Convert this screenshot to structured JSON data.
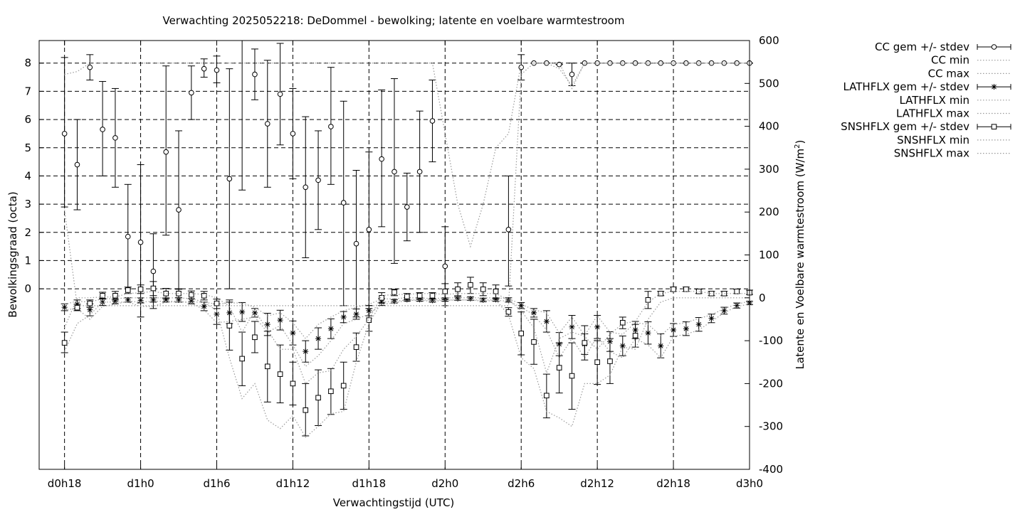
{
  "chart_data": {
    "type": "line",
    "title": "Verwachting 2025052218: DeDommel - bewolking; latente en voelbare warmtestroom",
    "xlabel": "Verwachtingstijd (UTC)",
    "ylabel": "Bewolkingsgraad (octa)",
    "y2label_main": "Latente en Voelbare warmtestroom (W/m",
    "y2label_sup": "2",
    "y2label_tail": ")",
    "x_unit": "hours since d0h0",
    "xlim": [
      16,
      72
    ],
    "ylim": [
      -6.4,
      8.8
    ],
    "y2lim": [
      -400,
      600
    ],
    "x_ticks": [
      {
        "x": 18,
        "label": "d0h18"
      },
      {
        "x": 24,
        "label": "d1h0"
      },
      {
        "x": 30,
        "label": "d1h6"
      },
      {
        "x": 36,
        "label": "d1h12"
      },
      {
        "x": 42,
        "label": "d1h18"
      },
      {
        "x": 48,
        "label": "d2h0"
      },
      {
        "x": 54,
        "label": "d2h6"
      },
      {
        "x": 60,
        "label": "d2h12"
      },
      {
        "x": 66,
        "label": "d2h18"
      },
      {
        "x": 72,
        "label": "d3h0"
      }
    ],
    "y_ticks": [
      0,
      1,
      2,
      3,
      4,
      5,
      6,
      7,
      8
    ],
    "y2_ticks": [
      -400,
      -300,
      -200,
      -100,
      0,
      100,
      200,
      300,
      400,
      500,
      600
    ],
    "grid": true,
    "legend_position": "outside-right",
    "x": [
      18,
      19,
      20,
      21,
      22,
      23,
      24,
      25,
      26,
      27,
      28,
      29,
      30,
      31,
      32,
      33,
      34,
      35,
      36,
      37,
      38,
      39,
      40,
      41,
      42,
      43,
      44,
      45,
      46,
      47,
      48,
      49,
      50,
      51,
      52,
      53,
      54,
      55,
      56,
      57,
      58,
      59,
      60,
      61,
      62,
      63,
      64,
      65,
      66,
      67,
      68,
      69,
      70,
      71,
      72
    ],
    "series": [
      {
        "name": "CC gem +/- stdev",
        "axis": "y1",
        "kind": "errorbars",
        "marker": "circle",
        "mean": [
          5.5,
          4.4,
          7.85,
          5.65,
          5.35,
          1.85,
          1.65,
          0.62,
          4.85,
          2.8,
          6.95,
          7.8,
          7.75,
          3.9,
          null,
          7.6,
          5.85,
          6.9,
          5.5,
          3.6,
          3.85,
          5.75,
          3.05,
          1.6,
          2.1,
          4.6,
          4.15,
          2.9,
          4.15,
          5.95,
          0.8,
          null,
          null,
          null,
          null,
          2.1,
          7.85,
          8.0,
          8.0,
          7.95,
          7.6,
          8.0,
          8.0,
          8.0,
          8.0,
          8.0,
          8.0,
          8.0,
          8.0,
          8.0,
          8.0,
          8.0,
          8.0,
          8.0,
          8.0
        ],
        "lo": [
          2.9,
          2.8,
          7.4,
          4.0,
          3.6,
          0.0,
          -1.0,
          -0.7,
          1.9,
          0.0,
          6.0,
          7.5,
          7.3,
          0.0,
          3.5,
          6.7,
          3.6,
          5.1,
          3.9,
          1.1,
          2.1,
          3.7,
          -0.6,
          -1.0,
          -0.6,
          2.2,
          0.9,
          1.7,
          2.0,
          4.5,
          -0.6,
          null,
          null,
          null,
          null,
          0.1,
          7.4,
          8.0,
          8.0,
          7.95,
          7.2,
          8.0,
          8.0,
          8.0,
          8.0,
          8.0,
          8.0,
          8.0,
          8.0,
          8.0,
          8.0,
          8.0,
          8.0,
          8.0,
          8.0
        ],
        "hi": [
          8.2,
          6.0,
          8.3,
          7.35,
          7.1,
          3.7,
          4.4,
          1.95,
          7.9,
          5.6,
          7.9,
          8.15,
          8.25,
          7.8,
          8.8,
          8.5,
          8.1,
          8.7,
          7.1,
          6.1,
          5.6,
          7.85,
          6.65,
          4.2,
          4.85,
          7.05,
          7.45,
          4.1,
          6.3,
          7.4,
          2.2,
          null,
          null,
          null,
          null,
          4.0,
          8.3,
          8.0,
          8.0,
          7.95,
          8.0,
          8.0,
          8.0,
          8.0,
          8.0,
          8.0,
          8.0,
          8.0,
          8.0,
          8.0,
          8.0,
          8.0,
          8.0,
          8.0,
          8.0
        ]
      },
      {
        "name": "CC min",
        "axis": "y1",
        "kind": "dotted",
        "values": [
          2.8,
          -0.6,
          -0.6,
          -0.6,
          -0.6,
          -0.6,
          -0.6,
          -0.6,
          -0.6,
          -0.6,
          -0.6,
          -0.6,
          -0.6,
          -0.6,
          -0.6,
          -0.6,
          -0.6,
          -0.6,
          -0.6,
          -0.6,
          -0.6,
          -0.6,
          -0.6,
          -0.6,
          -0.6,
          -0.6,
          -0.6,
          -0.6,
          -0.6,
          -0.6,
          -0.6,
          -0.6,
          -0.6,
          -0.6,
          -0.6,
          -0.6,
          7.6,
          8.0,
          8.0,
          7.8,
          7.2,
          8.0,
          8.0,
          8.0,
          8.0,
          8.0,
          8.0,
          8.0,
          8.0,
          8.0,
          8.0,
          8.0,
          8.0,
          8.0,
          8.0
        ]
      },
      {
        "name": "CC max",
        "axis": "y1",
        "kind": "dotted",
        "values": [
          7.6,
          7.7,
          8.0,
          8.0,
          8.0,
          8.0,
          8.0,
          8.0,
          8.0,
          8.0,
          8.0,
          8.0,
          8.0,
          8.0,
          8.0,
          8.0,
          8.0,
          8.0,
          8.0,
          8.0,
          8.0,
          8.0,
          8.0,
          8.0,
          8.0,
          8.0,
          8.0,
          8.0,
          8.0,
          8.0,
          5.5,
          3.0,
          1.5,
          3.0,
          5.0,
          5.5,
          8.0,
          8.0,
          8.0,
          8.0,
          7.1,
          8.0,
          8.0,
          8.0,
          8.0,
          8.0,
          8.0,
          8.0,
          8.0,
          8.0,
          8.0,
          8.0,
          8.0,
          8.0,
          8.0
        ]
      },
      {
        "name": "LATHFLX gem +/- stdev",
        "axis": "y2",
        "kind": "errorbars",
        "marker": "star",
        "mean": [
          -22,
          -15,
          -28,
          -10,
          -8,
          -5,
          -6,
          -5,
          -5,
          -5,
          -8,
          -20,
          -38,
          -35,
          -33,
          -35,
          -62,
          -52,
          -82,
          -125,
          -95,
          -72,
          -45,
          -38,
          -30,
          -10,
          -8,
          -4,
          -4,
          -6,
          -4,
          -2,
          -2,
          -5,
          -4,
          -5,
          -18,
          -35,
          -55,
          -108,
          -68,
          -108,
          -68,
          -102,
          -112,
          -75,
          -82,
          -112,
          -75,
          -72,
          -62,
          -48,
          -30,
          -18,
          -12
        ],
        "lo": [
          -30,
          -25,
          -42,
          -18,
          -14,
          -10,
          -12,
          -10,
          -10,
          -10,
          -14,
          -30,
          -62,
          -60,
          -55,
          -45,
          -88,
          -75,
          -110,
          -150,
          -120,
          -95,
          -58,
          -50,
          -42,
          -18,
          -12,
          -8,
          -8,
          -10,
          -8,
          -6,
          -6,
          -9,
          -8,
          -10,
          -25,
          -45,
          -80,
          -135,
          -95,
          -132,
          -95,
          -125,
          -135,
          -95,
          -108,
          -140,
          -90,
          -88,
          -78,
          -58,
          -38,
          -24,
          -16
        ],
        "hi": [
          -14,
          -5,
          -14,
          -2,
          -2,
          0,
          0,
          0,
          0,
          0,
          -2,
          -10,
          -14,
          -10,
          -11,
          -25,
          -36,
          -29,
          -54,
          -100,
          -70,
          -49,
          -32,
          -26,
          -18,
          -2,
          -4,
          0,
          0,
          -2,
          0,
          2,
          2,
          -1,
          0,
          0,
          -11,
          -25,
          -30,
          -81,
          -41,
          -84,
          -41,
          -79,
          -89,
          -55,
          -56,
          -84,
          -60,
          -56,
          -46,
          -38,
          -22,
          -12,
          -8
        ]
      },
      {
        "name": "LATHFLX min",
        "axis": "y2",
        "kind": "dotted",
        "values": [
          -28,
          -25,
          -50,
          -20,
          -15,
          -8,
          -10,
          -8,
          -8,
          -8,
          -12,
          -28,
          -58,
          -55,
          -50,
          -45,
          -80,
          -65,
          -110,
          -160,
          -135,
          -100,
          -60,
          -50,
          -38,
          -15,
          -12,
          -6,
          -6,
          -8,
          -6,
          -5,
          -5,
          -8,
          -6,
          -8,
          -22,
          -40,
          -75,
          -140,
          -95,
          -140,
          -90,
          -125,
          -140,
          -95,
          -110,
          -140,
          -90,
          -85,
          -75,
          -55,
          -35,
          -20,
          -15
        ]
      },
      {
        "name": "LATHFLX max",
        "axis": "y2",
        "kind": "dotted",
        "values": [
          -15,
          -8,
          -10,
          -2,
          -2,
          0,
          0,
          0,
          0,
          0,
          -2,
          -10,
          -15,
          -12,
          -12,
          -22,
          -42,
          -35,
          -58,
          -95,
          -62,
          -45,
          -30,
          -22,
          -15,
          -3,
          -2,
          0,
          0,
          -2,
          0,
          0,
          0,
          0,
          0,
          -2,
          -15,
          -28,
          -35,
          -82,
          -45,
          -88,
          -42,
          -80,
          -85,
          -58,
          -62,
          -88,
          -62,
          -58,
          -48,
          -40,
          -25,
          -15,
          -8
        ]
      },
      {
        "name": "SNSHFLX gem +/- stdev",
        "axis": "y2",
        "kind": "errorbars",
        "marker": "square",
        "mean": [
          -105,
          -23,
          -13,
          5,
          5,
          18,
          20,
          22,
          10,
          10,
          7,
          5,
          -13,
          -65,
          -142,
          -92,
          -160,
          -178,
          -200,
          -262,
          -233,
          -218,
          -205,
          -115,
          -52,
          0,
          13,
          3,
          5,
          5,
          15,
          20,
          30,
          20,
          15,
          -33,
          -83,
          -103,
          -228,
          -163,
          -182,
          -105,
          -150,
          -148,
          -58,
          -88,
          -5,
          10,
          20,
          20,
          15,
          10,
          10,
          15,
          12
        ],
        "lo": [
          -128,
          -30,
          -22,
          -3,
          -5,
          10,
          10,
          5,
          -2,
          0,
          -2,
          -5,
          -25,
          -122,
          -205,
          -128,
          -243,
          -245,
          -250,
          -322,
          -298,
          -272,
          -260,
          -148,
          -78,
          -12,
          5,
          -5,
          -3,
          -3,
          -3,
          5,
          10,
          5,
          -2,
          -43,
          -133,
          -155,
          -280,
          -222,
          -260,
          -145,
          -202,
          -200,
          -72,
          -115,
          -25,
          5,
          15,
          15,
          10,
          5,
          5,
          10,
          8
        ],
        "hi": [
          -80,
          -15,
          -5,
          13,
          15,
          25,
          30,
          38,
          22,
          20,
          16,
          15,
          -3,
          -5,
          -80,
          -55,
          -78,
          -110,
          -150,
          -200,
          -168,
          -165,
          -150,
          -82,
          -25,
          12,
          20,
          10,
          12,
          12,
          33,
          35,
          48,
          35,
          30,
          -23,
          -33,
          -50,
          -178,
          -105,
          -105,
          -65,
          -100,
          -95,
          -45,
          -62,
          15,
          15,
          25,
          25,
          20,
          15,
          15,
          20,
          18
        ]
      },
      {
        "name": "SNSHFLX min",
        "axis": "y2",
        "kind": "dotted",
        "values": [
          -125,
          -60,
          -40,
          -10,
          -10,
          -10,
          -20,
          -20,
          -10,
          -10,
          -10,
          -10,
          -30,
          -140,
          -235,
          -200,
          -285,
          -305,
          -275,
          -325,
          -300,
          -270,
          -265,
          -150,
          -60,
          -10,
          -8,
          -5,
          -5,
          -5,
          -5,
          -5,
          -5,
          -5,
          -5,
          -40,
          -140,
          -165,
          -265,
          -280,
          -300,
          -200,
          -200,
          -180,
          -115,
          -120,
          -50,
          -10,
          0,
          0,
          0,
          0,
          0,
          0,
          0
        ]
      },
      {
        "name": "SNSHFLX max",
        "axis": "y2",
        "kind": "dotted",
        "values": [
          -70,
          0,
          0,
          2,
          2,
          10,
          12,
          15,
          10,
          10,
          10,
          8,
          0,
          -20,
          -80,
          -30,
          -75,
          -120,
          -120,
          -200,
          -175,
          -170,
          -120,
          -90,
          -50,
          5,
          8,
          8,
          10,
          10,
          8,
          10,
          10,
          10,
          10,
          -5,
          -30,
          -70,
          -175,
          -95,
          -80,
          -90,
          -120,
          -85,
          -60,
          -55,
          -10,
          10,
          15,
          15,
          15,
          10,
          10,
          10,
          10
        ]
      }
    ]
  }
}
